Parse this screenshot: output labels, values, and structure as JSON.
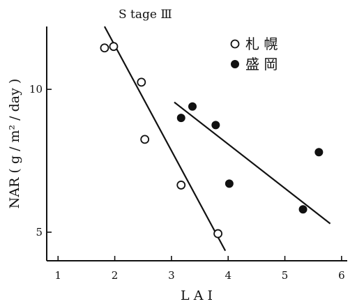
{
  "chart_data": {
    "type": "scatter",
    "title": "S tage Ⅲ",
    "xlabel": "L A I",
    "ylabel": "NAR ( g / m² / day )",
    "xlim": [
      0.8,
      6.1
    ],
    "ylim": [
      4.0,
      12.2
    ],
    "xticks": [
      1,
      2,
      3,
      4,
      5,
      6
    ],
    "xtick_labels": [
      "1",
      "2",
      "3",
      "4",
      "5",
      "6"
    ],
    "yticks": [
      5,
      10
    ],
    "ytick_labels": [
      "5",
      "10"
    ],
    "grid": false,
    "legend_position": "top-right",
    "series": [
      {
        "name": "札 幌",
        "marker": "open-circle",
        "points": [
          {
            "x": 1.82,
            "y": 11.45
          },
          {
            "x": 1.98,
            "y": 11.5
          },
          {
            "x": 2.47,
            "y": 10.25
          },
          {
            "x": 2.53,
            "y": 8.25
          },
          {
            "x": 3.17,
            "y": 6.65
          },
          {
            "x": 3.82,
            "y": 4.95
          }
        ],
        "trend": [
          {
            "x": 1.82,
            "y": 12.2
          },
          {
            "x": 3.95,
            "y": 4.35
          }
        ]
      },
      {
        "name": "盛 岡",
        "marker": "filled-circle",
        "points": [
          {
            "x": 3.17,
            "y": 9.0
          },
          {
            "x": 3.37,
            "y": 9.4
          },
          {
            "x": 3.78,
            "y": 8.75
          },
          {
            "x": 4.02,
            "y": 6.7
          },
          {
            "x": 5.32,
            "y": 5.8
          },
          {
            "x": 5.6,
            "y": 7.8
          }
        ],
        "trend": [
          {
            "x": 3.05,
            "y": 9.55
          },
          {
            "x": 5.8,
            "y": 5.3
          }
        ]
      }
    ]
  }
}
